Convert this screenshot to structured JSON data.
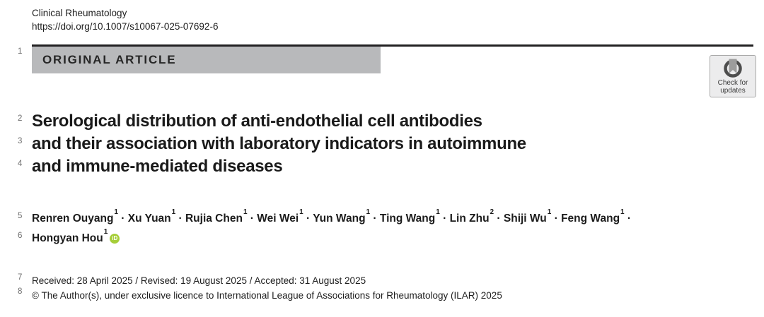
{
  "journal": {
    "name": "Clinical Rheumatology",
    "doi": "https://doi.org/10.1007/s10067-025-07692-6"
  },
  "article_type": "ORIGINAL ARTICLE",
  "crossmark": {
    "line1": "Check for",
    "line2": "updates"
  },
  "line_numbers": [
    "1",
    "2",
    "3",
    "4",
    "5",
    "6",
    "7",
    "8"
  ],
  "title": {
    "lines": [
      "Serological distribution of anti-endothelial cell antibodies",
      "and their association with laboratory indicators in autoimmune",
      "and immune-mediated diseases"
    ]
  },
  "authors": {
    "list": [
      {
        "name": "Renren Ouyang",
        "affiliation": "1"
      },
      {
        "name": "Xu Yuan",
        "affiliation": "1"
      },
      {
        "name": "Rujia Chen",
        "affiliation": "1"
      },
      {
        "name": "Wei Wei",
        "affiliation": "1"
      },
      {
        "name": "Yun Wang",
        "affiliation": "1"
      },
      {
        "name": "Ting Wang",
        "affiliation": "1"
      },
      {
        "name": "Lin Zhu",
        "affiliation": "2"
      },
      {
        "name": "Shiji Wu",
        "affiliation": "1"
      },
      {
        "name": "Feng Wang",
        "affiliation": "1"
      },
      {
        "name": "Hongyan Hou",
        "affiliation": "1",
        "orcid": true
      }
    ],
    "separator": "·",
    "line_break_before_index": 9,
    "orcid_label": "iD"
  },
  "dates": "Received: 28 April 2025 / Revised: 19 August 2025 / Accepted: 31 August 2025",
  "copyright": "© The Author(s), under exclusive licence to International League of Associations for Rheumatology (ILAR) 2025",
  "colors": {
    "banner_bg": "#b8b9bb",
    "rule": "#222122",
    "orcid_green": "#a6ce39",
    "crossmark_ring": "#4d4d4d",
    "crossmark_bookmark": "#9c9c9c"
  }
}
